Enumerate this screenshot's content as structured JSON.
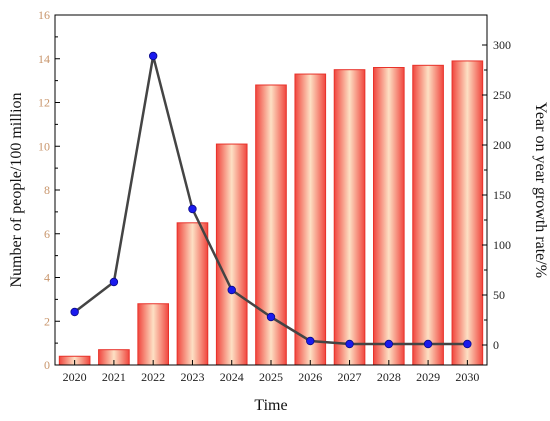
{
  "chart_data": {
    "type": "bar+line",
    "categories": [
      "2020",
      "2021",
      "2022",
      "2023",
      "2024",
      "2025",
      "2026",
      "2027",
      "2028",
      "2029",
      "2030"
    ],
    "series": [
      {
        "type": "bar",
        "axis": "left",
        "values": [
          0.4,
          0.7,
          2.8,
          6.5,
          10.1,
          12.8,
          13.3,
          13.5,
          13.6,
          13.7,
          13.9
        ],
        "color": "#e8322a"
      },
      {
        "type": "line",
        "axis": "right",
        "values": [
          33,
          63,
          289,
          136,
          55,
          28,
          4,
          1,
          1,
          1,
          1
        ],
        "color": "#444444",
        "marker_color": "#1a1aee"
      }
    ],
    "xlabel": "Time",
    "ylabel": "Number of people/100 million",
    "y2label": "Year on year growth rate/%",
    "ylim": [
      0,
      16
    ],
    "yticks": [
      0,
      2,
      4,
      6,
      8,
      10,
      12,
      14,
      16
    ],
    "y2lim": [
      -20,
      330
    ],
    "y2ticks": [
      0,
      50,
      100,
      150,
      200,
      250,
      300
    ],
    "grid": false,
    "legend": "none"
  }
}
